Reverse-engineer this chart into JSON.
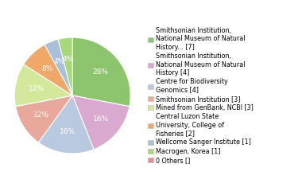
{
  "slices": [
    {
      "label": "Smithsonian Institution,\nNational Museum of Natural\nHistory... [7]",
      "pct": 28,
      "color": "#8DC46E"
    },
    {
      "label": "Smithsonian Institution,\nNational Museum of Natural\nHistory [4]",
      "pct": 16,
      "color": "#D9A9D0"
    },
    {
      "label": "Centre for Biodiversity\nGenomics [4]",
      "pct": 16,
      "color": "#B8C9E0"
    },
    {
      "label": "Smithsonian Institution [3]",
      "pct": 12,
      "color": "#E8A89C"
    },
    {
      "label": "Mined from GenBank, NCBI [3]",
      "pct": 12,
      "color": "#D4E89C"
    },
    {
      "label": "Central Luzon State\nUniversity, College of\nFisheries [2]",
      "pct": 8,
      "color": "#F0A868"
    },
    {
      "label": "Wellcome Sanger Institute [1]",
      "pct": 4,
      "color": "#A8C0D8"
    },
    {
      "label": "Macrogen, Korea [1]",
      "pct": 4,
      "color": "#A8D878"
    },
    {
      "label": "0 Others []",
      "pct": 0,
      "color": "#E09090"
    }
  ],
  "legend_labels": [
    "Smithsonian Institution,\nNational Museum of Natural\nHistory... [7]",
    "Smithsonian Institution,\nNational Museum of Natural\nHistory [4]",
    "Centre for Biodiversity\nGenomics [4]",
    "Smithsonian Institution [3]",
    "Mined from GenBank, NCBI [3]",
    "Central Luzon State\nUniversity, College of\nFisheries [2]",
    "Wellcome Sanger Institute [1]",
    "Macrogen, Korea [1]",
    "0 Others []"
  ],
  "legend_colors": [
    "#8DC46E",
    "#D9A9D0",
    "#B8C9E0",
    "#E8A89C",
    "#D4E89C",
    "#F0A868",
    "#A8C0D8",
    "#A8D878",
    "#E09090"
  ],
  "text_color": "#ffffff",
  "pct_fontsize": 6.5,
  "legend_fontsize": 5.8
}
